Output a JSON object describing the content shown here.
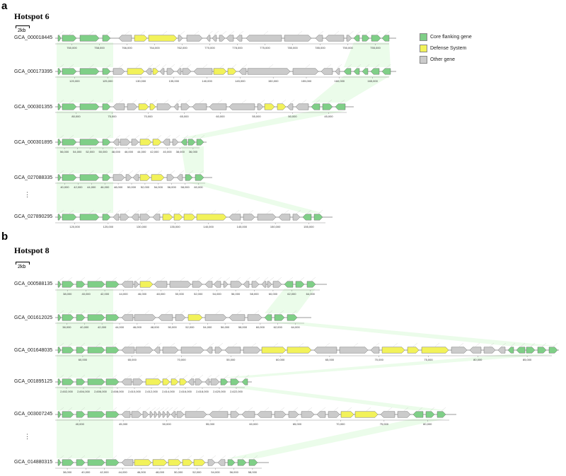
{
  "colors": {
    "core": "#7fcf87",
    "defense": "#f2f25a",
    "other": "#cbcbcb",
    "link": "#e8fbe6"
  },
  "legend": [
    {
      "label": "Core flanking gene",
      "color_key": "core"
    },
    {
      "label": "Defense System",
      "color_key": "defense"
    },
    {
      "label": "Other gene",
      "color_key": "other"
    }
  ],
  "panels": [
    {
      "letter": "a",
      "title": "Hotspot 6",
      "scale_label": "2kb",
      "tracks": [
        {
          "accession": "GCA_000018445",
          "ticks": [
            "760,000",
            "758,000",
            "766,000",
            "764,000",
            "762,000",
            "770,000",
            "778,000",
            "775,000",
            "780,000",
            "785,000",
            "750,000",
            "755,000"
          ]
        },
        {
          "accession": "GCA_000173395",
          "ticks": [
            "120,000",
            "125,000",
            "130,000",
            "135,000",
            "140,000",
            "145,000",
            "150,000",
            "155,000",
            "160,000",
            "165,000"
          ]
        },
        {
          "accession": "GCA_000301355",
          "ticks": [
            "80,000",
            "75,000",
            "70,000",
            "65,000",
            "60,000",
            "55,000",
            "50,000",
            "45,000"
          ]
        },
        {
          "accession": "GCA_000301895",
          "ticks": [
            "56,000",
            "54,000",
            "52,000",
            "50,000",
            "48,000",
            "46,000",
            "44,000",
            "42,000",
            "40,000",
            "38,000",
            "36,000"
          ]
        },
        {
          "accession": "GCA_027088335",
          "ticks": [
            "40,000",
            "42,000",
            "44,000",
            "46,000",
            "48,000",
            "50,000",
            "52,000",
            "54,000",
            "56,000",
            "58,000",
            "60,000"
          ]
        },
        {
          "accession": "GCA_027890295",
          "ticks": [
            "120,000",
            "125,000",
            "130,000",
            "135,000",
            "140,000",
            "145,000",
            "150,000",
            "155,000"
          ]
        }
      ]
    },
    {
      "letter": "b",
      "title": "Hotspot 8",
      "scale_label": "2kb",
      "tracks": [
        {
          "accession": "GCA_000588135",
          "ticks": [
            "38,000",
            "40,000",
            "42,000",
            "44,000",
            "46,000",
            "48,000",
            "50,000",
            "52,000",
            "54,000",
            "56,000",
            "58,000",
            "60,000",
            "62,000",
            "64,000"
          ]
        },
        {
          "accession": "GCA_001612025",
          "ticks": [
            "38,000",
            "40,000",
            "42,000",
            "44,000",
            "46,000",
            "48,000",
            "50,000",
            "52,000",
            "54,000",
            "56,000",
            "58,000",
            "60,000",
            "62,000",
            "64,000"
          ]
        },
        {
          "accession": "GCA_001648035",
          "ticks": [
            "60,000",
            "65,000",
            "70,000",
            "55,000",
            "60,000",
            "65,000",
            "70,000",
            "75,000",
            "80,000",
            "85,000"
          ]
        },
        {
          "accession": "GCA_001895125",
          "ticks": [
            "2,602,000",
            "2,604,000",
            "2,606,000",
            "2,608,000",
            "2,610,000",
            "2,612,000",
            "2,614,000",
            "2,616,000",
            "2,618,000",
            "2,620,000",
            "2,622,000"
          ]
        },
        {
          "accession": "GCA_003007245",
          "ticks": [
            "40,000",
            "45,000",
            "50,000",
            "55,000",
            "60,000",
            "65,000",
            "70,000",
            "75,000",
            "80,000"
          ]
        },
        {
          "accession": "GCA_014880315",
          "ticks": [
            "38,000",
            "40,000",
            "42,000",
            "44,000",
            "46,000",
            "48,000",
            "50,000",
            "52,000",
            "54,000",
            "56,000",
            "58,000"
          ]
        }
      ]
    }
  ]
}
